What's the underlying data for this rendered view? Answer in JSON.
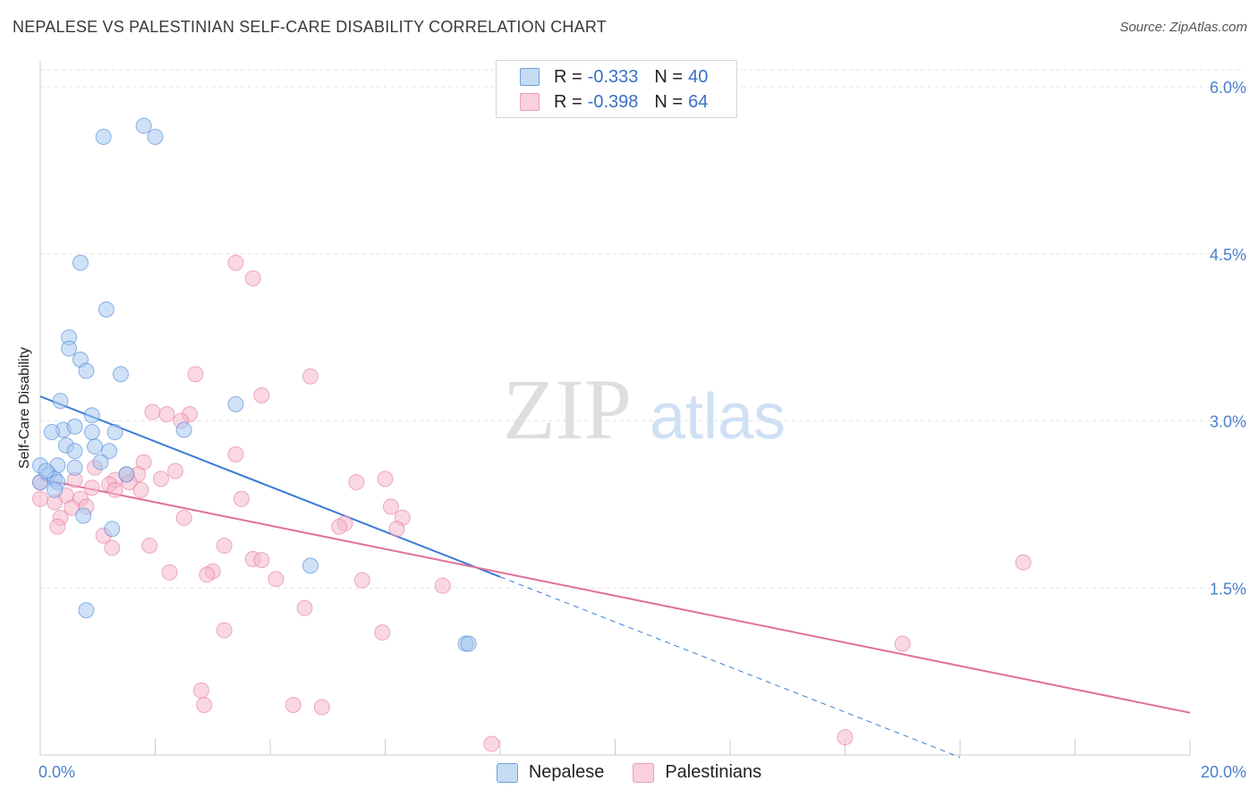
{
  "title": "NEPALESE VS PALESTINIAN SELF-CARE DISABILITY CORRELATION CHART",
  "source": "Source: ZipAtlas.com",
  "watermark": {
    "zip": "ZIP",
    "atlas": "atlas"
  },
  "legend_top": [
    {
      "label": "R = ",
      "r": "-0.333",
      "n_label": "N = ",
      "n": "40",
      "color": "#a8c8f0"
    },
    {
      "label": "R = ",
      "r": "-0.398",
      "n_label": "N = ",
      "n": "64",
      "color": "#f5b8cb"
    }
  ],
  "legend_bottom": [
    {
      "name": "Nepalese",
      "color": "#a8c8f0"
    },
    {
      "name": "Palestinians",
      "color": "#f5b8cb"
    }
  ],
  "chart_data": {
    "type": "scatter",
    "title": "NEPALESE VS PALESTINIAN SELF-CARE DISABILITY CORRELATION CHART",
    "xlabel": "",
    "ylabel": "Self-Care Disability",
    "xlim": [
      0,
      20
    ],
    "ylim": [
      0,
      6.2
    ],
    "x_tick_labels": [
      "0.0%",
      "20.0%"
    ],
    "y_ticks": [
      1.5,
      3.0,
      4.5,
      6.0
    ],
    "y_tick_labels": [
      "1.5%",
      "3.0%",
      "4.5%",
      "6.0%"
    ],
    "grid": true,
    "series": [
      {
        "name": "Nepalese",
        "color": "#3a7bd5",
        "fill": "#a8c8f0",
        "trend": {
          "x0": 0,
          "y0": 3.22,
          "x1": 8.0,
          "y1": 1.6,
          "dashed_to_x": 16.0
        },
        "points": [
          [
            1.1,
            5.55
          ],
          [
            1.8,
            5.65
          ],
          [
            2.0,
            5.55
          ],
          [
            0.7,
            4.42
          ],
          [
            1.15,
            4.0
          ],
          [
            0.5,
            3.75
          ],
          [
            0.5,
            3.65
          ],
          [
            0.7,
            3.55
          ],
          [
            0.8,
            3.45
          ],
          [
            1.4,
            3.42
          ],
          [
            0.35,
            3.18
          ],
          [
            0.9,
            3.05
          ],
          [
            3.4,
            3.15
          ],
          [
            0.4,
            2.92
          ],
          [
            0.2,
            2.9
          ],
          [
            0.6,
            2.95
          ],
          [
            0.9,
            2.9
          ],
          [
            1.3,
            2.9
          ],
          [
            0.45,
            2.78
          ],
          [
            0.95,
            2.77
          ],
          [
            0.6,
            2.73
          ],
          [
            1.2,
            2.73
          ],
          [
            0.3,
            2.6
          ],
          [
            0.0,
            2.6
          ],
          [
            0.6,
            2.58
          ],
          [
            1.05,
            2.63
          ],
          [
            0.15,
            2.52
          ],
          [
            0.25,
            2.48
          ],
          [
            1.5,
            2.52
          ],
          [
            0.0,
            2.45
          ],
          [
            0.3,
            2.45
          ],
          [
            0.25,
            2.38
          ],
          [
            0.75,
            2.15
          ],
          [
            1.25,
            2.03
          ],
          [
            2.5,
            2.92
          ],
          [
            4.7,
            1.7
          ],
          [
            0.8,
            1.3
          ],
          [
            7.4,
            1.0
          ],
          [
            7.45,
            1.0
          ],
          [
            0.1,
            2.55
          ]
        ]
      },
      {
        "name": "Palestinians",
        "color": "#e0709a",
        "fill": "#f5b8cb",
        "trend": {
          "x0": 0,
          "y0": 2.48,
          "x1": 20.0,
          "y1": 0.38
        },
        "points": [
          [
            3.4,
            4.42
          ],
          [
            3.7,
            4.28
          ],
          [
            2.7,
            3.42
          ],
          [
            4.7,
            3.4
          ],
          [
            3.85,
            3.23
          ],
          [
            1.95,
            3.08
          ],
          [
            2.2,
            3.06
          ],
          [
            2.6,
            3.06
          ],
          [
            2.45,
            3.0
          ],
          [
            3.4,
            2.7
          ],
          [
            1.8,
            2.63
          ],
          [
            1.3,
            2.47
          ],
          [
            2.35,
            2.55
          ],
          [
            2.1,
            2.48
          ],
          [
            0.95,
            2.58
          ],
          [
            1.5,
            2.52
          ],
          [
            1.7,
            2.52
          ],
          [
            1.55,
            2.45
          ],
          [
            0.6,
            2.47
          ],
          [
            1.2,
            2.43
          ],
          [
            5.5,
            2.45
          ],
          [
            6.0,
            2.48
          ],
          [
            0.0,
            2.45
          ],
          [
            0.9,
            2.4
          ],
          [
            1.3,
            2.38
          ],
          [
            1.75,
            2.38
          ],
          [
            0.45,
            2.33
          ],
          [
            0.7,
            2.3
          ],
          [
            0.0,
            2.3
          ],
          [
            0.25,
            2.27
          ],
          [
            3.5,
            2.3
          ],
          [
            0.55,
            2.22
          ],
          [
            6.1,
            2.23
          ],
          [
            0.8,
            2.23
          ],
          [
            0.35,
            2.13
          ],
          [
            2.5,
            2.13
          ],
          [
            6.3,
            2.13
          ],
          [
            5.3,
            2.08
          ],
          [
            5.2,
            2.05
          ],
          [
            6.2,
            2.03
          ],
          [
            1.1,
            1.97
          ],
          [
            1.9,
            1.88
          ],
          [
            3.2,
            1.88
          ],
          [
            1.25,
            1.86
          ],
          [
            3.7,
            1.76
          ],
          [
            3.85,
            1.75
          ],
          [
            17.1,
            1.73
          ],
          [
            2.25,
            1.64
          ],
          [
            3.0,
            1.65
          ],
          [
            2.9,
            1.62
          ],
          [
            4.1,
            1.58
          ],
          [
            5.6,
            1.57
          ],
          [
            7.0,
            1.52
          ],
          [
            4.6,
            1.32
          ],
          [
            3.2,
            1.12
          ],
          [
            5.95,
            1.1
          ],
          [
            15.0,
            1.0
          ],
          [
            2.8,
            0.58
          ],
          [
            2.85,
            0.45
          ],
          [
            4.4,
            0.45
          ],
          [
            4.9,
            0.43
          ],
          [
            14.0,
            0.16
          ],
          [
            7.85,
            0.1
          ],
          [
            0.3,
            2.05
          ]
        ]
      }
    ]
  }
}
